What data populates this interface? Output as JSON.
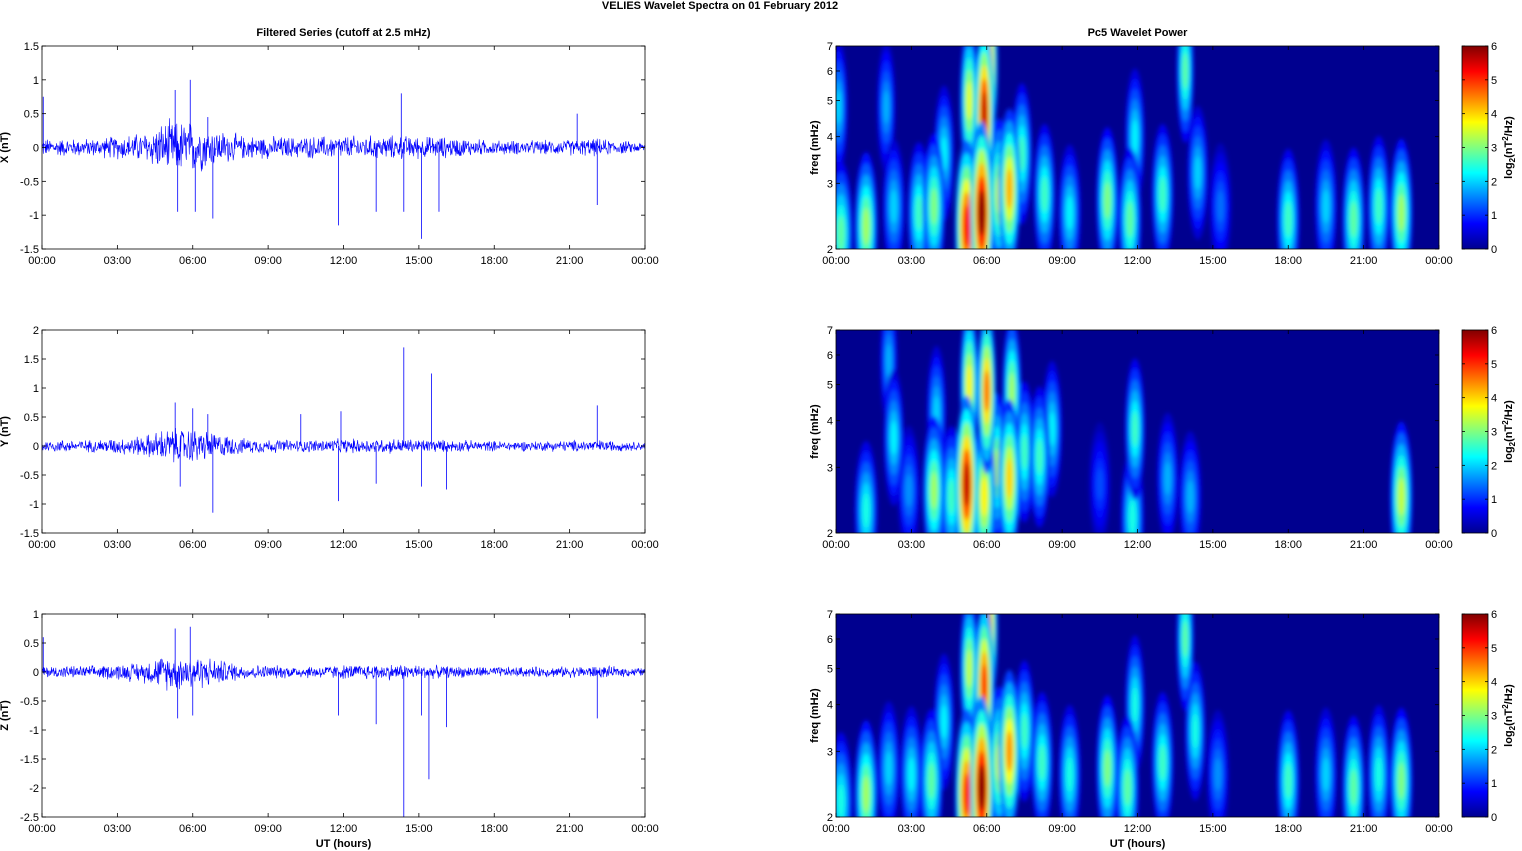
{
  "figure": {
    "suptitle": "VELIES Wavelet Spectra on 01 February  2012",
    "colors": {
      "trace": "#0000ff",
      "axis": "#000000"
    }
  },
  "chart_data": [
    {
      "type": "line",
      "panel": "x-series",
      "title": "Filtered Series (cutoff at 2.5 mHz)",
      "ylabel": "X (nT)",
      "xlabel": "",
      "xlim": [
        0,
        24
      ],
      "ylim": [
        -1.5,
        1.5
      ],
      "xticks": [
        "00:00",
        "03:00",
        "06:00",
        "09:00",
        "12:00",
        "15:00",
        "18:00",
        "21:00",
        "00:00"
      ],
      "yticks": [
        "-1.5",
        "-1",
        "-0.5",
        "0",
        "0.5",
        "1",
        "1.5"
      ],
      "ytick_values": [
        -1.5,
        -1,
        -0.5,
        0,
        0.5,
        1,
        1.5
      ],
      "grid": false,
      "envelope": {
        "x_hours": [
          0,
          2,
          4,
          5,
          6,
          7,
          8,
          10,
          12,
          14,
          16,
          18,
          20,
          22,
          24
        ],
        "amplitude": [
          0.15,
          0.15,
          0.25,
          0.45,
          0.45,
          0.3,
          0.2,
          0.18,
          0.2,
          0.2,
          0.18,
          0.12,
          0.12,
          0.15,
          0.08
        ]
      },
      "spikes": [
        {
          "x": 0.05,
          "y": 0.75
        },
        {
          "x": 5.3,
          "y": 0.85
        },
        {
          "x": 5.4,
          "y": -0.95
        },
        {
          "x": 5.9,
          "y": 1.0
        },
        {
          "x": 6.1,
          "y": -0.95
        },
        {
          "x": 6.6,
          "y": 0.45
        },
        {
          "x": 6.8,
          "y": -1.05
        },
        {
          "x": 11.8,
          "y": -1.15
        },
        {
          "x": 13.3,
          "y": -0.95
        },
        {
          "x": 14.3,
          "y": 0.8
        },
        {
          "x": 14.4,
          "y": -0.95
        },
        {
          "x": 15.1,
          "y": -1.35
        },
        {
          "x": 15.8,
          "y": -0.95
        },
        {
          "x": 22.1,
          "y": -0.85
        },
        {
          "x": 21.3,
          "y": 0.5
        }
      ]
    },
    {
      "type": "heatmap",
      "panel": "x-wavelet",
      "title": "Pc5 Wavelet Power",
      "ylabel": "freq (mHz)",
      "xlabel": "",
      "xlim": [
        0,
        24
      ],
      "ylim": [
        2,
        7
      ],
      "yscale": "log",
      "xticks": [
        "00:00",
        "03:00",
        "06:00",
        "09:00",
        "12:00",
        "15:00",
        "18:00",
        "21:00",
        "00:00"
      ],
      "yticks": [
        "2",
        "3",
        "4",
        "5",
        "6",
        "7"
      ],
      "ytick_values": [
        2,
        3,
        4,
        5,
        6,
        7
      ],
      "colorbar": {
        "label_base": "log",
        "label_sub": "2",
        "label_mid": "(nT",
        "label_sup": "2",
        "label_end": "/Hz)",
        "range": [
          0,
          6
        ],
        "ticks": [
          "0",
          "1",
          "2",
          "3",
          "4",
          "5",
          "6"
        ],
        "tick_values": [
          0,
          1,
          2,
          3,
          4,
          5,
          6
        ],
        "colormap": "jet"
      },
      "blobs": [
        {
          "t": 0.2,
          "f": 2.2,
          "p": 2.8
        },
        {
          "t": 0.1,
          "f": 4.8,
          "p": 2.0
        },
        {
          "t": 1.2,
          "f": 2.3,
          "p": 3.2
        },
        {
          "t": 2.3,
          "f": 2.6,
          "p": 2.0
        },
        {
          "t": 2.0,
          "f": 4.8,
          "p": 1.8
        },
        {
          "t": 3.3,
          "f": 2.5,
          "p": 2.6
        },
        {
          "t": 3.9,
          "f": 2.6,
          "p": 3.0
        },
        {
          "t": 4.3,
          "f": 3.6,
          "p": 2.2
        },
        {
          "t": 5.2,
          "f": 2.3,
          "p": 5.2
        },
        {
          "t": 5.3,
          "f": 5.0,
          "p": 3.6
        },
        {
          "t": 5.8,
          "f": 2.5,
          "p": 6.0
        },
        {
          "t": 5.9,
          "f": 4.6,
          "p": 5.6
        },
        {
          "t": 6.1,
          "f": 6.2,
          "p": 4.6
        },
        {
          "t": 6.5,
          "f": 2.8,
          "p": 3.5
        },
        {
          "t": 6.9,
          "f": 2.9,
          "p": 4.2
        },
        {
          "t": 7.4,
          "f": 3.6,
          "p": 2.6
        },
        {
          "t": 8.3,
          "f": 2.8,
          "p": 2.6
        },
        {
          "t": 9.3,
          "f": 2.5,
          "p": 2.2
        },
        {
          "t": 10.8,
          "f": 2.7,
          "p": 3.0
        },
        {
          "t": 11.7,
          "f": 2.4,
          "p": 2.8
        },
        {
          "t": 11.9,
          "f": 4.0,
          "p": 2.2
        },
        {
          "t": 13.0,
          "f": 2.8,
          "p": 2.6
        },
        {
          "t": 13.9,
          "f": 6.0,
          "p": 2.8
        },
        {
          "t": 14.4,
          "f": 3.2,
          "p": 2.0
        },
        {
          "t": 15.3,
          "f": 2.6,
          "p": 1.4
        },
        {
          "t": 18.0,
          "f": 2.4,
          "p": 2.6
        },
        {
          "t": 19.5,
          "f": 2.6,
          "p": 2.0
        },
        {
          "t": 20.6,
          "f": 2.4,
          "p": 2.8
        },
        {
          "t": 21.6,
          "f": 2.6,
          "p": 2.6
        },
        {
          "t": 22.5,
          "f": 2.5,
          "p": 3.2
        }
      ]
    },
    {
      "type": "line",
      "panel": "y-series",
      "title": "",
      "ylabel": "Y (nT)",
      "xlabel": "",
      "xlim": [
        0,
        24
      ],
      "ylim": [
        -1.5,
        2
      ],
      "xticks": [
        "00:00",
        "03:00",
        "06:00",
        "09:00",
        "12:00",
        "15:00",
        "18:00",
        "21:00",
        "00:00"
      ],
      "yticks": [
        "-1.5",
        "-1",
        "-0.5",
        "0",
        "0.5",
        "1",
        "1.5",
        "2"
      ],
      "ytick_values": [
        -1.5,
        -1,
        -0.5,
        0,
        0.5,
        1,
        1.5,
        2
      ],
      "grid": false,
      "envelope": {
        "x_hours": [
          0,
          2,
          4,
          5,
          6,
          7,
          8,
          10,
          12,
          14,
          16,
          18,
          20,
          22,
          24
        ],
        "amplitude": [
          0.12,
          0.12,
          0.2,
          0.35,
          0.35,
          0.25,
          0.15,
          0.12,
          0.14,
          0.15,
          0.12,
          0.1,
          0.1,
          0.12,
          0.08
        ]
      },
      "spikes": [
        {
          "x": 5.3,
          "y": 0.75
        },
        {
          "x": 5.5,
          "y": -0.7
        },
        {
          "x": 6.0,
          "y": 0.65
        },
        {
          "x": 6.6,
          "y": 0.55
        },
        {
          "x": 6.8,
          "y": -1.15
        },
        {
          "x": 10.3,
          "y": 0.55
        },
        {
          "x": 11.8,
          "y": -0.95
        },
        {
          "x": 11.9,
          "y": 0.6
        },
        {
          "x": 13.3,
          "y": -0.65
        },
        {
          "x": 14.4,
          "y": 1.7
        },
        {
          "x": 15.1,
          "y": -0.7
        },
        {
          "x": 15.5,
          "y": 1.25
        },
        {
          "x": 16.1,
          "y": -0.75
        },
        {
          "x": 22.1,
          "y": 0.7
        }
      ]
    },
    {
      "type": "heatmap",
      "panel": "y-wavelet",
      "title": "",
      "ylabel": "freq (mHz)",
      "xlabel": "",
      "xlim": [
        0,
        24
      ],
      "ylim": [
        2,
        7
      ],
      "yscale": "log",
      "xticks": [
        "00:00",
        "03:00",
        "06:00",
        "09:00",
        "12:00",
        "15:00",
        "18:00",
        "21:00",
        "00:00"
      ],
      "yticks": [
        "2",
        "3",
        "4",
        "5",
        "6",
        "7"
      ],
      "ytick_values": [
        2,
        3,
        4,
        5,
        6,
        7
      ],
      "colorbar": {
        "label_base": "log",
        "label_sub": "2",
        "label_mid": "(nT",
        "label_sup": "2",
        "label_end": "/Hz)",
        "range": [
          0,
          6
        ],
        "ticks": [
          "0",
          "1",
          "2",
          "3",
          "4",
          "5",
          "6"
        ],
        "tick_values": [
          0,
          1,
          2,
          3,
          4,
          5,
          6
        ],
        "colormap": "jet"
      },
      "blobs": [
        {
          "t": 1.2,
          "f": 2.3,
          "p": 2.4
        },
        {
          "t": 2.1,
          "f": 5.8,
          "p": 1.8
        },
        {
          "t": 2.3,
          "f": 3.6,
          "p": 2.2
        },
        {
          "t": 2.9,
          "f": 2.6,
          "p": 1.6
        },
        {
          "t": 3.9,
          "f": 2.6,
          "p": 3.2
        },
        {
          "t": 4.0,
          "f": 4.2,
          "p": 2.0
        },
        {
          "t": 4.6,
          "f": 2.5,
          "p": 2.6
        },
        {
          "t": 5.2,
          "f": 2.7,
          "p": 5.6
        },
        {
          "t": 5.3,
          "f": 5.0,
          "p": 3.8
        },
        {
          "t": 5.9,
          "f": 2.5,
          "p": 3.8
        },
        {
          "t": 6.0,
          "f": 4.8,
          "p": 4.6
        },
        {
          "t": 6.4,
          "f": 3.0,
          "p": 3.2
        },
        {
          "t": 6.9,
          "f": 2.8,
          "p": 4.0
        },
        {
          "t": 7.0,
          "f": 4.8,
          "p": 3.2
        },
        {
          "t": 7.5,
          "f": 3.3,
          "p": 2.6
        },
        {
          "t": 8.1,
          "f": 3.2,
          "p": 2.6
        },
        {
          "t": 8.6,
          "f": 3.8,
          "p": 2.2
        },
        {
          "t": 11.9,
          "f": 3.8,
          "p": 2.6
        },
        {
          "t": 11.8,
          "f": 2.2,
          "p": 2.4
        },
        {
          "t": 13.2,
          "f": 2.8,
          "p": 1.8
        },
        {
          "t": 14.1,
          "f": 2.5,
          "p": 1.8
        },
        {
          "t": 10.5,
          "f": 2.7,
          "p": 1.2
        },
        {
          "t": 22.5,
          "f": 2.5,
          "p": 3.4
        }
      ]
    },
    {
      "type": "line",
      "panel": "z-series",
      "title": "",
      "ylabel": "Z (nT)",
      "xlabel": "UT (hours)",
      "xlim": [
        0,
        24
      ],
      "ylim": [
        -2.5,
        1
      ],
      "xticks": [
        "00:00",
        "03:00",
        "06:00",
        "09:00",
        "12:00",
        "15:00",
        "18:00",
        "21:00",
        "00:00"
      ],
      "yticks": [
        "-2.5",
        "-2",
        "-1.5",
        "-1",
        "-0.5",
        "0",
        "0.5",
        "1"
      ],
      "ytick_values": [
        -2.5,
        -2,
        -1.5,
        -1,
        -0.5,
        0,
        0.5,
        1
      ],
      "grid": false,
      "envelope": {
        "x_hours": [
          0,
          2,
          4,
          5,
          6,
          7,
          8,
          10,
          12,
          14,
          16,
          18,
          20,
          22,
          24
        ],
        "amplitude": [
          0.12,
          0.12,
          0.2,
          0.35,
          0.35,
          0.25,
          0.15,
          0.12,
          0.14,
          0.16,
          0.12,
          0.1,
          0.1,
          0.12,
          0.08
        ]
      },
      "spikes": [
        {
          "x": 0.05,
          "y": 0.6
        },
        {
          "x": 5.3,
          "y": 0.75
        },
        {
          "x": 5.4,
          "y": -0.8
        },
        {
          "x": 5.9,
          "y": 0.78
        },
        {
          "x": 6.0,
          "y": -0.75
        },
        {
          "x": 11.8,
          "y": -0.75
        },
        {
          "x": 13.3,
          "y": -0.9
        },
        {
          "x": 14.4,
          "y": -2.5
        },
        {
          "x": 15.1,
          "y": -0.75
        },
        {
          "x": 15.4,
          "y": -1.85
        },
        {
          "x": 16.1,
          "y": -0.95
        },
        {
          "x": 22.1,
          "y": -0.8
        }
      ]
    },
    {
      "type": "heatmap",
      "panel": "z-wavelet",
      "title": "",
      "ylabel": "freq (mHz)",
      "xlabel": "UT (hours)",
      "xlim": [
        0,
        24
      ],
      "ylim": [
        2,
        7
      ],
      "yscale": "log",
      "xticks": [
        "00:00",
        "03:00",
        "06:00",
        "09:00",
        "12:00",
        "15:00",
        "18:00",
        "21:00",
        "00:00"
      ],
      "yticks": [
        "2",
        "3",
        "4",
        "5",
        "6",
        "7"
      ],
      "ytick_values": [
        2,
        3,
        4,
        5,
        6,
        7
      ],
      "colorbar": {
        "label_base": "log",
        "label_sub": "2",
        "label_mid": "(nT",
        "label_sup": "2",
        "label_end": "/Hz)",
        "range": [
          0,
          6
        ],
        "ticks": [
          "0",
          "1",
          "2",
          "3",
          "4",
          "5",
          "6"
        ],
        "tick_values": [
          0,
          1,
          2,
          3,
          4,
          5,
          6
        ],
        "colormap": "jet"
      },
      "blobs": [
        {
          "t": 0.2,
          "f": 2.2,
          "p": 2.4
        },
        {
          "t": 1.2,
          "f": 2.3,
          "p": 3.2
        },
        {
          "t": 2.1,
          "f": 2.7,
          "p": 2.0
        },
        {
          "t": 3.0,
          "f": 2.6,
          "p": 2.2
        },
        {
          "t": 3.8,
          "f": 2.5,
          "p": 2.8
        },
        {
          "t": 4.3,
          "f": 3.6,
          "p": 2.2
        },
        {
          "t": 5.2,
          "f": 2.3,
          "p": 5.0
        },
        {
          "t": 5.3,
          "f": 5.0,
          "p": 3.4
        },
        {
          "t": 5.8,
          "f": 2.4,
          "p": 6.0
        },
        {
          "t": 5.9,
          "f": 4.5,
          "p": 5.0
        },
        {
          "t": 6.1,
          "f": 6.4,
          "p": 4.4
        },
        {
          "t": 6.5,
          "f": 2.8,
          "p": 3.5
        },
        {
          "t": 6.9,
          "f": 3.0,
          "p": 4.4
        },
        {
          "t": 7.5,
          "f": 3.4,
          "p": 2.6
        },
        {
          "t": 8.2,
          "f": 2.8,
          "p": 2.6
        },
        {
          "t": 9.3,
          "f": 2.6,
          "p": 2.4
        },
        {
          "t": 10.8,
          "f": 2.7,
          "p": 3.0
        },
        {
          "t": 11.6,
          "f": 2.4,
          "p": 2.8
        },
        {
          "t": 11.9,
          "f": 4.0,
          "p": 2.4
        },
        {
          "t": 13.0,
          "f": 2.8,
          "p": 2.6
        },
        {
          "t": 13.9,
          "f": 6.0,
          "p": 2.8
        },
        {
          "t": 14.3,
          "f": 3.4,
          "p": 2.4
        },
        {
          "t": 15.2,
          "f": 2.6,
          "p": 1.6
        },
        {
          "t": 18.0,
          "f": 2.5,
          "p": 2.6
        },
        {
          "t": 19.5,
          "f": 2.6,
          "p": 2.0
        },
        {
          "t": 20.6,
          "f": 2.4,
          "p": 2.8
        },
        {
          "t": 21.6,
          "f": 2.6,
          "p": 2.4
        },
        {
          "t": 22.5,
          "f": 2.5,
          "p": 3.0
        }
      ]
    }
  ]
}
